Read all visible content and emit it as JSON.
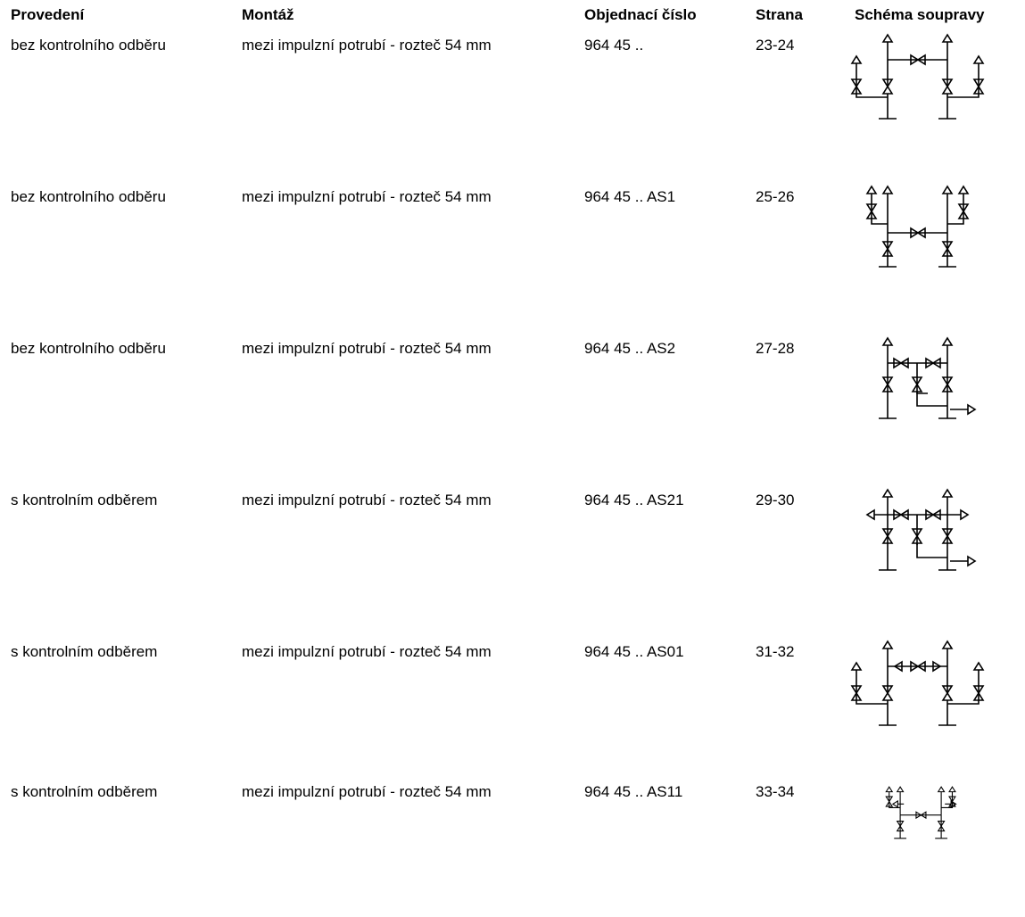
{
  "table": {
    "headers": {
      "provedeni": "Provedení",
      "montaz": "Montáž",
      "objednaci_cislo": "Objednací číslo",
      "strana": "Strana",
      "schema": "Schéma soupravy"
    },
    "rows": [
      {
        "provedeni": "bez kontrolního odběru",
        "montaz": "mezi impulzní potrubí - rozteč 54 mm",
        "objednaci_cislo": "964 45 ..",
        "strana": "23-24",
        "schema_icon": "manifold-schema-5-way"
      },
      {
        "provedeni": "bez kontrolního odběru",
        "montaz": "mezi impulzní potrubí - rozteč 54 mm",
        "objednaci_cislo": "964 45 .. AS1",
        "strana": "25-26",
        "schema_icon": "manifold-schema-as1"
      },
      {
        "provedeni": "bez kontrolního odběru",
        "montaz": "mezi impulzní potrubí - rozteč 54 mm",
        "objednaci_cislo": "964 45 .. AS2",
        "strana": "27-28",
        "schema_icon": "manifold-schema-as2"
      },
      {
        "provedeni": "s kontrolním odběrem",
        "montaz": "mezi impulzní potrubí - rozteč 54 mm",
        "objednaci_cislo": "964 45 .. AS21",
        "strana": "29-30",
        "schema_icon": "manifold-schema-as21"
      },
      {
        "provedeni": "s kontrolním odběrem",
        "montaz": "mezi impulzní potrubí - rozteč 54 mm",
        "objednaci_cislo": "964 45 .. AS01",
        "strana": "31-32",
        "schema_icon": "manifold-schema-as01"
      },
      {
        "provedeni": "s kontrolním odběrem",
        "montaz": "mezi impulzní potrubí - rozteč 54 mm",
        "objednaci_cislo": "964 45 .. AS11",
        "strana": "33-34",
        "schema_icon": "manifold-schema-as11"
      }
    ]
  }
}
